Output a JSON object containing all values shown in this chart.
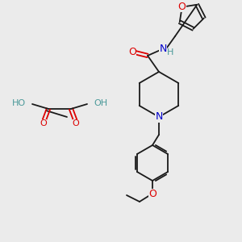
{
  "bg_color": "#ebebeb",
  "bond_color": "#1a1a1a",
  "atom_colors": {
    "O": "#dd0000",
    "N": "#0000cc",
    "H": "#4a9999",
    "C": "#1a1a1a"
  },
  "figsize": [
    3.0,
    3.0
  ],
  "dpi": 100
}
